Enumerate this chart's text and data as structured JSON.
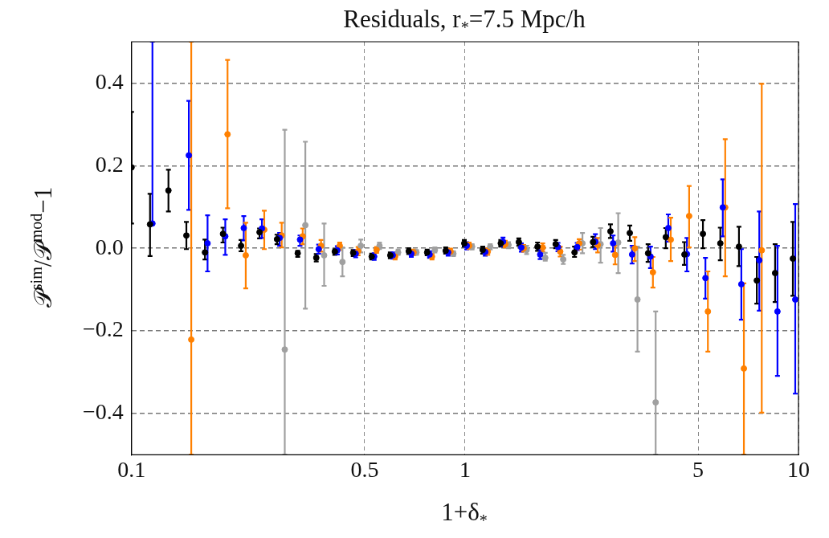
{
  "chart_data": {
    "type": "scatter",
    "title": "Residuals, r$_{*}$=7.5 Mpc/h",
    "xlabel": "1+δ$_{*}$",
    "ylabel": "𝒫$^{sim}$/𝒫$^{mod}$−1",
    "log": "x",
    "grid": true,
    "legend": false,
    "marker": "circle",
    "xlim": [
      0.1,
      10
    ],
    "xticks": [
      0.1,
      0.5,
      1,
      5,
      10
    ],
    "ylim": [
      -0.5,
      0.5
    ],
    "yticks": [
      {
        "value": -0.4,
        "label": "−0.4"
      },
      {
        "value": -0.2,
        "label": "−0.2"
      },
      {
        "value": 0,
        "label": "0.0"
      },
      {
        "value": 0.2,
        "label": "0.2"
      },
      {
        "value": 0.4,
        "label": "0.4"
      }
    ],
    "series": [
      {
        "color": "#000000",
        "x": [
          0.1,
          0.1136,
          0.129,
          0.146,
          0.166,
          0.188,
          0.213,
          0.242,
          0.273,
          0.315,
          0.358,
          0.407,
          0.462,
          0.525,
          0.597,
          0.678,
          0.77,
          0.875,
          0.995,
          1.13,
          1.28,
          1.45,
          1.65,
          1.87,
          2.13,
          2.42,
          2.73,
          3.12,
          3.54,
          4.0,
          4.55,
          5.17,
          5.83,
          6.63,
          7.5,
          8.51,
          9.62
        ],
        "values": [
          0.196,
          0.058,
          0.14,
          0.031,
          -0.01,
          0.035,
          0.006,
          0.039,
          0.022,
          -0.012,
          -0.023,
          -0.008,
          -0.011,
          -0.02,
          -0.017,
          -0.007,
          -0.01,
          -0.006,
          0.012,
          -0.004,
          0.012,
          0.015,
          0.004,
          0.01,
          -0.01,
          0.015,
          0.041,
          0.037,
          -0.012,
          0.027,
          -0.015,
          0.035,
          0.012,
          0.004,
          -0.078,
          -0.06,
          -0.025
        ],
        "errors": [
          [
            0.06,
            0.33
          ],
          [
            -0.019,
            0.132
          ],
          [
            0.089,
            0.19
          ],
          [
            -0.002,
            0.064
          ],
          [
            -0.027,
            0.021
          ],
          [
            0.014,
            0.05
          ],
          [
            -0.007,
            0.02
          ],
          [
            0.024,
            0.048
          ],
          [
            0.01,
            0.033
          ],
          [
            -0.021,
            -0.006
          ],
          [
            -0.032,
            -0.014
          ],
          [
            -0.016,
            -0.002
          ],
          [
            -0.019,
            -0.004
          ],
          [
            -0.027,
            -0.013
          ],
          [
            -0.024,
            -0.01
          ],
          [
            -0.014,
            0
          ],
          [
            -0.017,
            -0.003
          ],
          [
            -0.013,
            0.002
          ],
          [
            0.004,
            0.02
          ],
          [
            -0.013,
            0.004
          ],
          [
            0.004,
            0.02
          ],
          [
            0.006,
            0.024
          ],
          [
            -0.006,
            0.014
          ],
          [
            0,
            0.02
          ],
          [
            -0.021,
            0.004
          ],
          [
            0.003,
            0.028
          ],
          [
            0.025,
            0.058
          ],
          [
            0.018,
            0.055
          ],
          [
            -0.033,
            0.01
          ],
          [
            0,
            0.049
          ],
          [
            -0.04,
            0.015
          ],
          [
            0,
            0.068
          ],
          [
            -0.029,
            0.05
          ],
          [
            -0.043,
            0.052
          ],
          [
            -0.134,
            -0.021
          ],
          [
            -0.13,
            0.01
          ],
          [
            -0.115,
            0.064
          ]
        ]
      },
      {
        "color": "#0000ff",
        "x": [
          0.1155,
          0.1485,
          0.169,
          0.191,
          0.217,
          0.246,
          0.278,
          0.32,
          0.364,
          0.414,
          0.47,
          0.534,
          0.607,
          0.69,
          0.783,
          0.89,
          1.012,
          1.15,
          1.3,
          1.475,
          1.68,
          1.9,
          2.17,
          2.46,
          2.78,
          3.17,
          3.6,
          4.07,
          4.63,
          5.26,
          5.93,
          6.74,
          7.63,
          8.65,
          9.78
        ],
        "values": [
          0.06,
          0.225,
          0.012,
          0.029,
          0.049,
          0.048,
          0.025,
          0.021,
          -0.002,
          -0.005,
          -0.013,
          -0.02,
          -0.017,
          -0.013,
          -0.015,
          -0.01,
          0.006,
          -0.009,
          0.016,
          0.002,
          -0.015,
          0.003,
          0.003,
          0.016,
          0.012,
          -0.015,
          -0.02,
          0.049,
          -0.014,
          -0.072,
          0.099,
          -0.087,
          -0.029,
          -0.153,
          -0.124
        ],
        "errors": [
          [
            0.06,
            0.5
          ],
          [
            0.093,
            0.357
          ],
          [
            -0.056,
            0.08
          ],
          [
            -0.016,
            0.07
          ],
          [
            0.019,
            0.078
          ],
          [
            0.025,
            0.07
          ],
          [
            0.006,
            0.037
          ],
          [
            0.006,
            0.031
          ],
          [
            -0.013,
            0.009
          ],
          [
            -0.015,
            0.005
          ],
          [
            -0.022,
            -0.004
          ],
          [
            -0.028,
            -0.012
          ],
          [
            -0.025,
            -0.01
          ],
          [
            -0.021,
            -0.005
          ],
          [
            -0.023,
            -0.007
          ],
          [
            -0.018,
            -0.002
          ],
          [
            -0.003,
            0.015
          ],
          [
            -0.018,
            0
          ],
          [
            0.005,
            0.026
          ],
          [
            -0.008,
            0.012
          ],
          [
            -0.026,
            -0.004
          ],
          [
            -0.007,
            0.013
          ],
          [
            -0.005,
            0.013
          ],
          [
            -0.002,
            0.034
          ],
          [
            -0.008,
            0.031
          ],
          [
            -0.037,
            0.006
          ],
          [
            -0.048,
            0.004
          ],
          [
            0.016,
            0.082
          ],
          [
            -0.056,
            0.025
          ],
          [
            -0.122,
            -0.023
          ],
          [
            0.029,
            0.167
          ],
          [
            -0.173,
            -0.002
          ],
          [
            -0.151,
            0.089
          ],
          [
            -0.309,
            0.006
          ],
          [
            -0.352,
            0.107
          ]
        ]
      },
      {
        "color": "#ff8000",
        "x": [
          0.151,
          0.194,
          0.22,
          0.25,
          0.282,
          0.326,
          0.37,
          0.421,
          0.478,
          0.543,
          0.617,
          0.701,
          0.796,
          0.905,
          1.029,
          1.17,
          1.32,
          1.5,
          1.71,
          1.93,
          2.2,
          2.5,
          2.82,
          3.23,
          3.66,
          4.14,
          4.7,
          5.35,
          6.03,
          6.86,
          7.76
        ],
        "values": [
          -0.221,
          0.276,
          -0.017,
          0.045,
          0.031,
          0.029,
          0.006,
          0.006,
          -0.007,
          -0.004,
          -0.02,
          -0.01,
          -0.02,
          -0.008,
          0.006,
          -0.008,
          0.01,
          0.0,
          0.002,
          -0.008,
          0.012,
          0.008,
          -0.016,
          0.0,
          -0.058,
          0.021,
          0.078,
          -0.153,
          0.099,
          -0.291,
          -0.005
        ],
        "errors": [
          [
            -0.5,
            0.5
          ],
          [
            0.097,
            0.456
          ],
          [
            -0.097,
            0.062
          ],
          [
            -0.002,
            0.091
          ],
          [
            0.002,
            0.062
          ],
          [
            0.01,
            0.048
          ],
          [
            -0.008,
            0.02
          ],
          [
            -0.004,
            0.014
          ],
          [
            -0.017,
            0.003
          ],
          [
            -0.011,
            0.003
          ],
          [
            -0.027,
            -0.013
          ],
          [
            -0.017,
            -0.003
          ],
          [
            -0.027,
            -0.013
          ],
          [
            -0.015,
            -0.001
          ],
          [
            -0.002,
            0.014
          ],
          [
            -0.016,
            0
          ],
          [
            0.002,
            0.018
          ],
          [
            -0.008,
            0.008
          ],
          [
            -0.008,
            0.012
          ],
          [
            -0.02,
            0.004
          ],
          [
            -0.003,
            0.022
          ],
          [
            -0.01,
            0.025
          ],
          [
            -0.039,
            0.006
          ],
          [
            -0.031,
            0.027
          ],
          [
            -0.095,
            -0.021
          ],
          [
            -0.031,
            0.074
          ],
          [
            0.002,
            0.151
          ],
          [
            -0.25,
            -0.056
          ],
          [
            -0.068,
            0.264
          ],
          [
            -0.5,
            -0.085
          ],
          [
            -0.398,
            0.398
          ]
        ]
      },
      {
        "color": "#a0a0a0",
        "x": [
          0.288,
          0.332,
          0.378,
          0.429,
          0.487,
          0.554,
          0.63,
          0.715,
          0.812,
          0.923,
          1.05,
          1.19,
          1.35,
          1.53,
          1.74,
          1.97,
          2.25,
          2.55,
          2.88,
          3.29,
          3.73
        ],
        "values": [
          -0.245,
          0.056,
          -0.017,
          -0.033,
          0.006,
          0.006,
          -0.01,
          -0.01,
          -0.004,
          -0.013,
          0.004,
          0.004,
          0.008,
          -0.004,
          -0.023,
          -0.027,
          0.012,
          0.01,
          0.014,
          -0.124,
          -0.373
        ],
        "errors": [
          [
            -0.5,
            0.287
          ],
          [
            -0.146,
            0.258
          ],
          [
            -0.091,
            0.06
          ],
          [
            -0.068,
            0.002
          ],
          [
            -0.01,
            0.021
          ],
          [
            -0.002,
            0.014
          ],
          [
            -0.016,
            -0.003
          ],
          [
            -0.016,
            -0.004
          ],
          [
            -0.01,
            0.002
          ],
          [
            -0.019,
            -0.007
          ],
          [
            -0.003,
            0.01
          ],
          [
            -0.003,
            0.01
          ],
          [
            0,
            0.015
          ],
          [
            -0.014,
            0.006
          ],
          [
            -0.03,
            -0.011
          ],
          [
            -0.038,
            -0.016
          ],
          [
            -0.012,
            0.037
          ],
          [
            -0.035,
            0.049
          ],
          [
            -0.06,
            0.085
          ],
          [
            -0.25,
            0.004
          ],
          [
            -0.5,
            -0.153
          ]
        ]
      }
    ]
  }
}
